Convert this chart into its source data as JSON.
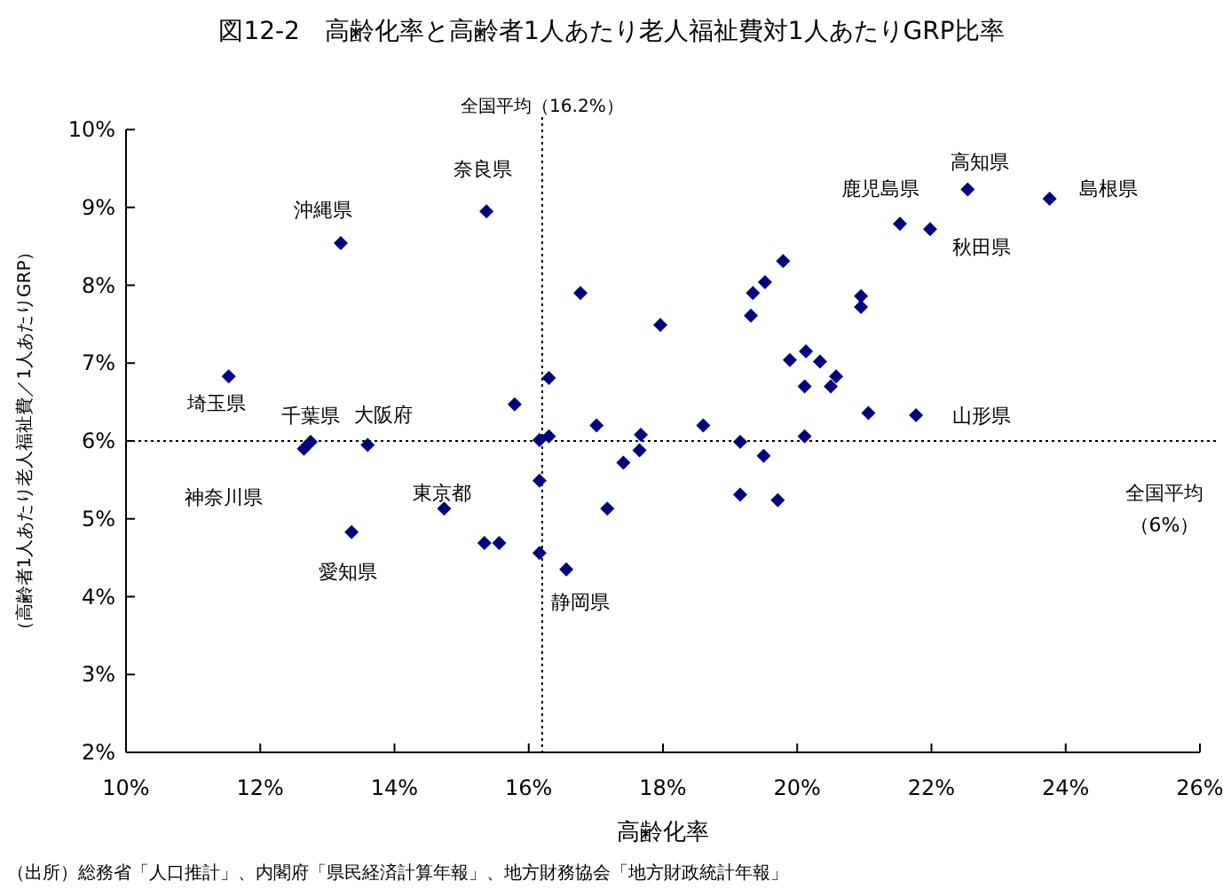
{
  "chart_data": {
    "type": "scatter",
    "title": "図12-2　高齢化率と高齢者1人あたり老人福祉費対1人あたりGRP比率",
    "xlabel": "高齢化率",
    "ylabel": "（高齢者1人あたり老人福祉費／1人あたりGRP）",
    "xlim": [
      10,
      26
    ],
    "ylim": [
      2,
      10
    ],
    "xticks": [
      {
        "value": 10,
        "label": "10%"
      },
      {
        "value": 12,
        "label": "12%"
      },
      {
        "value": 14,
        "label": "14%"
      },
      {
        "value": 16,
        "label": "16%"
      },
      {
        "value": 18,
        "label": "18%"
      },
      {
        "value": 20,
        "label": "20%"
      },
      {
        "value": 22,
        "label": "22%"
      },
      {
        "value": 24,
        "label": "24%"
      },
      {
        "value": 26,
        "label": "26%"
      }
    ],
    "yticks": [
      {
        "value": 2,
        "label": "2%"
      },
      {
        "value": 3,
        "label": "3%"
      },
      {
        "value": 4,
        "label": "4%"
      },
      {
        "value": 5,
        "label": "5%"
      },
      {
        "value": 6,
        "label": "6%"
      },
      {
        "value": 7,
        "label": "7%"
      },
      {
        "value": 8,
        "label": "8%"
      },
      {
        "value": 9,
        "label": "9%"
      },
      {
        "value": 10,
        "label": "10%"
      }
    ],
    "grid": false,
    "marker": "diamond",
    "series": [
      {
        "color": "#000080",
        "x": [
          11.53,
          12.75,
          12.65,
          13.6,
          13.2,
          15.37,
          13.36,
          14.74,
          15.34,
          15.56,
          15.79,
          16.16,
          16.3,
          16.16,
          16.16,
          16.3,
          16.56,
          16.77,
          17.01,
          17.17,
          17.41,
          17.65,
          17.67,
          17.96,
          18.6,
          19.15,
          19.15,
          19.5,
          19.71,
          19.89,
          20.11,
          19.31,
          19.34,
          19.52,
          19.79,
          20.13,
          20.34,
          20.11,
          20.5,
          20.58,
          20.95,
          20.95,
          21.06,
          21.77,
          21.53,
          21.98,
          22.54,
          23.76
        ],
        "values": [
          6.83,
          5.99,
          5.9,
          5.95,
          8.54,
          8.95,
          4.83,
          5.13,
          4.69,
          4.69,
          6.47,
          6.01,
          6.06,
          5.49,
          4.56,
          6.81,
          4.35,
          7.9,
          6.2,
          5.13,
          5.72,
          5.88,
          6.08,
          7.49,
          6.2,
          5.99,
          5.31,
          5.81,
          5.24,
          7.04,
          6.06,
          7.61,
          7.9,
          8.04,
          8.31,
          7.15,
          7.02,
          6.7,
          6.7,
          6.83,
          7.86,
          7.72,
          6.36,
          6.33,
          8.79,
          8.72,
          9.23,
          9.11
        ]
      }
    ],
    "ref_lines": [
      {
        "axis": "x",
        "value": 16.2,
        "label": "全国平均（16.2%）",
        "line_style": "dotted",
        "color": "#000000"
      },
      {
        "axis": "y",
        "value": 6,
        "label": "全国平均（6%）",
        "line_style": "dotted",
        "color": "#000000"
      }
    ],
    "annotations": [
      {
        "text": "埼玉県",
        "x": 11.53,
        "y": 6.83
      },
      {
        "text": "千葉県",
        "x": 12.75,
        "y": 5.99
      },
      {
        "text": "神奈川県",
        "x": 12.65,
        "y": 5.9
      },
      {
        "text": "大阪府",
        "x": 13.6,
        "y": 5.95
      },
      {
        "text": "沖縄県",
        "x": 13.2,
        "y": 8.54
      },
      {
        "text": "奈良県",
        "x": 15.37,
        "y": 8.95
      },
      {
        "text": "愛知県",
        "x": 13.36,
        "y": 4.83
      },
      {
        "text": "東京都",
        "x": 14.74,
        "y": 5.13
      },
      {
        "text": "静岡県",
        "x": 16.56,
        "y": 4.35
      },
      {
        "text": "山形県",
        "x": 21.77,
        "y": 6.33
      },
      {
        "text": "鹿児島県",
        "x": 21.53,
        "y": 8.79
      },
      {
        "text": "秋田県",
        "x": 21.98,
        "y": 8.72
      },
      {
        "text": "高知県",
        "x": 22.54,
        "y": 9.23
      },
      {
        "text": "島根県",
        "x": 23.76,
        "y": 9.11
      },
      "（出所）総務省「人口推計」、内閣府「県民経済計算年報」、地方財務協会「地方財政統計年報」"
    ]
  }
}
